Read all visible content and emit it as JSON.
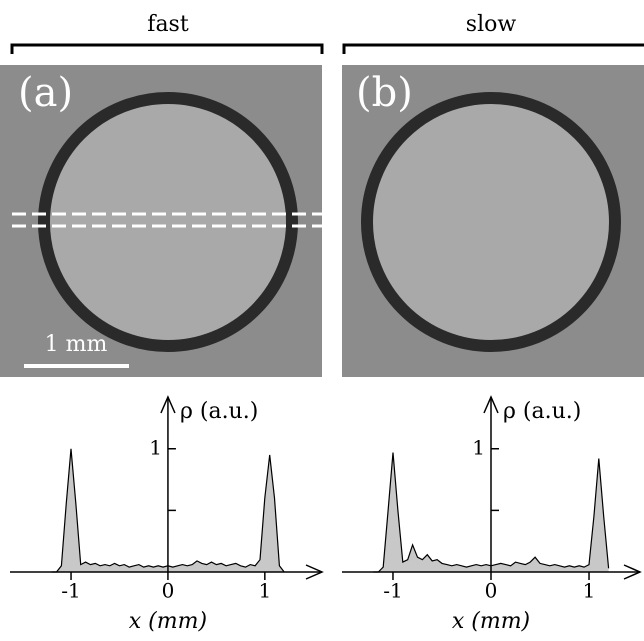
{
  "panels": [
    {
      "header": "fast",
      "label": "(a)",
      "scale_bar": "1 mm"
    },
    {
      "header": "slow",
      "label": "(b)"
    }
  ],
  "chart_data": [
    {
      "type": "area",
      "x_label": "x (mm)",
      "y_label": "ρ (a.u.)",
      "color": "#c8c8c8",
      "xlim": [
        -1.63,
        1.59
      ],
      "ylim": [
        0,
        1.42
      ],
      "xticks": [
        -1,
        0,
        1
      ],
      "yticks": [
        {
          "value": 0.5,
          "label": null
        },
        1
      ],
      "x": [
        -1.2,
        -1.15,
        -1.1,
        -1.05,
        -1.0,
        -0.95,
        -0.9,
        -0.85,
        -0.8,
        -0.75,
        -0.7,
        -0.65,
        -0.6,
        -0.55,
        -0.5,
        -0.45,
        -0.4,
        -0.35,
        -0.3,
        -0.25,
        -0.2,
        -0.15,
        -0.1,
        -0.05,
        0,
        0.05,
        0.1,
        0.15,
        0.2,
        0.25,
        0.3,
        0.35,
        0.4,
        0.45,
        0.5,
        0.55,
        0.6,
        0.65,
        0.7,
        0.75,
        0.8,
        0.85,
        0.9,
        0.95,
        1.0,
        1.05,
        1.1,
        1.15,
        1.2
      ],
      "values": [
        0,
        0,
        0.05,
        0.55,
        1.0,
        0.55,
        0.06,
        0.08,
        0.06,
        0.07,
        0.05,
        0.06,
        0.05,
        0.07,
        0.05,
        0.06,
        0.04,
        0.05,
        0.06,
        0.04,
        0.05,
        0.04,
        0.05,
        0.04,
        0.05,
        0.04,
        0.05,
        0.06,
        0.05,
        0.06,
        0.09,
        0.07,
        0.06,
        0.08,
        0.06,
        0.07,
        0.05,
        0.06,
        0.07,
        0.05,
        0.04,
        0.06,
        0.05,
        0.1,
        0.6,
        0.95,
        0.6,
        0.05,
        0
      ]
    },
    {
      "type": "area",
      "x_label": "x (mm)",
      "y_label": "ρ (a.u.)",
      "color": "#c8c8c8",
      "xlim": [
        -1.52,
        1.52
      ],
      "ylim": [
        0,
        1.42
      ],
      "xticks": [
        -1,
        0,
        1
      ],
      "yticks": [
        {
          "value": 0.5,
          "label": null
        },
        1
      ],
      "x": [
        -1.2,
        -1.15,
        -1.1,
        -1.05,
        -1.0,
        -0.95,
        -0.9,
        -0.85,
        -0.8,
        -0.75,
        -0.7,
        -0.65,
        -0.6,
        -0.55,
        -0.5,
        -0.45,
        -0.4,
        -0.35,
        -0.3,
        -0.25,
        -0.2,
        -0.15,
        -0.1,
        -0.05,
        0,
        0.05,
        0.1,
        0.15,
        0.2,
        0.25,
        0.3,
        0.35,
        0.4,
        0.45,
        0.5,
        0.55,
        0.6,
        0.65,
        0.7,
        0.75,
        0.8,
        0.85,
        0.9,
        0.95,
        1.0,
        1.05,
        1.1,
        1.15,
        1.2
      ],
      "values": [
        0,
        0,
        0.04,
        0.5,
        0.97,
        0.5,
        0.08,
        0.1,
        0.22,
        0.12,
        0.1,
        0.14,
        0.09,
        0.1,
        0.07,
        0.06,
        0.05,
        0.06,
        0.05,
        0.04,
        0.05,
        0.06,
        0.05,
        0.06,
        0.05,
        0.06,
        0.07,
        0.06,
        0.05,
        0.08,
        0.07,
        0.06,
        0.08,
        0.12,
        0.07,
        0.06,
        0.05,
        0.06,
        0.05,
        0.04,
        0.05,
        0.04,
        0.05,
        0.04,
        0.06,
        0.45,
        0.92,
        0.45,
        0.03
      ]
    }
  ]
}
